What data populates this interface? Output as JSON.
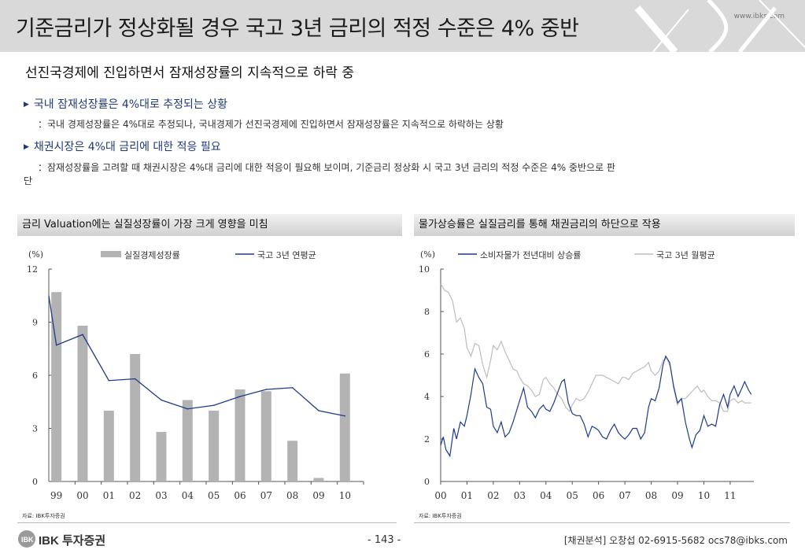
{
  "header": {
    "title": "기준금리가 정상화될 경우 국고 3년 금리의 적정 수준은 4% 중반",
    "site": "www.ibks.com"
  },
  "lead": "선진국경제에 진입하면서 잠재성장률의 지속적으로 하락 중",
  "bullets": [
    {
      "heading": "국내 잠재성장률은 4%대로 추정되는 상황",
      "detail_line1": "：국내 경제성장률은 4%대로 추정되나, 국내경제가 선진국경제에 진입하면서 잠재성장률은 지속적으로 하락하는 상황",
      "detail_line2": ""
    },
    {
      "heading": "채권시장은 4%대 금리에 대한 적응 필요",
      "detail_line1": "：잠재성장률을 고려할 때 채권시장은 4%대 금리에 대한 적응이 필요해 보이며, 기준금리 정상화 시 국고 3년 금리의 적정 수준은 4% 중반으로 판",
      "detail_line2": "단"
    }
  ],
  "charts": [
    {
      "header": "금리 Valuation에는 실질성장률이 가장 크게 영향을 미침",
      "source": "자료: IBK투자증권"
    },
    {
      "header": "물가상승률은 실질금리를 통해 채권금리의 하단으로 작용",
      "source": "자료: IBK투자증권"
    }
  ],
  "chart_data": [
    {
      "type": "bar",
      "unit_label": "(%)",
      "categories": [
        "99",
        "00",
        "01",
        "02",
        "03",
        "04",
        "05",
        "06",
        "07",
        "08",
        "09",
        "10"
      ],
      "ylim": [
        0,
        12
      ],
      "yticks": [
        "0",
        "3",
        "6",
        "9",
        "12"
      ],
      "series": [
        {
          "name": "실질경제성장률",
          "type": "bar",
          "color": "#b3b3b3",
          "values": [
            10.7,
            8.8,
            4.0,
            7.2,
            2.8,
            4.6,
            4.0,
            5.2,
            5.1,
            2.3,
            0.2,
            6.1
          ]
        },
        {
          "name": "국고 3년 연평균",
          "type": "line",
          "color": "#1f3a8c",
          "values": [
            7.7,
            8.3,
            5.7,
            5.8,
            4.6,
            4.1,
            4.3,
            4.8,
            5.2,
            5.3,
            4.0,
            3.7
          ]
        }
      ],
      "line_start_value": 10.5,
      "grid": false,
      "legend": "top"
    },
    {
      "type": "line",
      "unit_label": "(%)",
      "x_ticks": [
        "00",
        "01",
        "02",
        "03",
        "04",
        "05",
        "06",
        "07",
        "08",
        "09",
        "10",
        "11"
      ],
      "x_range": [
        2000.0,
        2011.9
      ],
      "ylim": [
        0,
        10
      ],
      "yticks": [
        "0",
        "2",
        "4",
        "6",
        "8",
        "10"
      ],
      "series": [
        {
          "name": "소비자물가 전년대비 상승률",
          "color": "#1f3a8c",
          "points": [
            [
              2000.0,
              1.7
            ],
            [
              2000.1,
              2.1
            ],
            [
              2000.2,
              1.5
            ],
            [
              2000.35,
              1.2
            ],
            [
              2000.5,
              2.5
            ],
            [
              2000.6,
              2.0
            ],
            [
              2000.75,
              2.8
            ],
            [
              2000.9,
              2.6
            ],
            [
              2001.0,
              3.1
            ],
            [
              2001.15,
              4.1
            ],
            [
              2001.3,
              5.3
            ],
            [
              2001.45,
              4.9
            ],
            [
              2001.6,
              4.6
            ],
            [
              2001.75,
              3.5
            ],
            [
              2001.9,
              3.4
            ],
            [
              2002.0,
              2.6
            ],
            [
              2002.15,
              2.3
            ],
            [
              2002.3,
              2.8
            ],
            [
              2002.45,
              2.1
            ],
            [
              2002.6,
              2.3
            ],
            [
              2002.75,
              2.8
            ],
            [
              2002.9,
              3.4
            ],
            [
              2003.0,
              3.8
            ],
            [
              2003.15,
              4.4
            ],
            [
              2003.3,
              3.5
            ],
            [
              2003.45,
              3.3
            ],
            [
              2003.6,
              3.0
            ],
            [
              2003.75,
              3.4
            ],
            [
              2003.9,
              3.6
            ],
            [
              2004.0,
              3.4
            ],
            [
              2004.15,
              3.3
            ],
            [
              2004.3,
              3.7
            ],
            [
              2004.45,
              4.2
            ],
            [
              2004.6,
              4.7
            ],
            [
              2004.7,
              4.8
            ],
            [
              2004.85,
              3.7
            ],
            [
              2005.0,
              3.2
            ],
            [
              2005.15,
              3.1
            ],
            [
              2005.3,
              3.1
            ],
            [
              2005.45,
              2.7
            ],
            [
              2005.6,
              2.1
            ],
            [
              2005.75,
              2.6
            ],
            [
              2005.9,
              2.5
            ],
            [
              2006.0,
              2.4
            ],
            [
              2006.15,
              2.1
            ],
            [
              2006.3,
              2.0
            ],
            [
              2006.45,
              2.4
            ],
            [
              2006.6,
              2.7
            ],
            [
              2006.75,
              2.3
            ],
            [
              2006.9,
              2.1
            ],
            [
              2007.0,
              2.0
            ],
            [
              2007.15,
              2.2
            ],
            [
              2007.3,
              2.5
            ],
            [
              2007.45,
              2.5
            ],
            [
              2007.6,
              2.0
            ],
            [
              2007.75,
              2.3
            ],
            [
              2007.9,
              3.5
            ],
            [
              2008.0,
              3.9
            ],
            [
              2008.15,
              3.8
            ],
            [
              2008.3,
              4.4
            ],
            [
              2008.45,
              5.5
            ],
            [
              2008.55,
              5.9
            ],
            [
              2008.7,
              5.6
            ],
            [
              2008.85,
              4.5
            ],
            [
              2009.0,
              3.7
            ],
            [
              2009.15,
              3.9
            ],
            [
              2009.3,
              2.8
            ],
            [
              2009.45,
              2.0
            ],
            [
              2009.55,
              1.6
            ],
            [
              2009.7,
              2.2
            ],
            [
              2009.85,
              2.4
            ],
            [
              2010.0,
              3.1
            ],
            [
              2010.15,
              2.6
            ],
            [
              2010.3,
              2.7
            ],
            [
              2010.45,
              2.6
            ],
            [
              2010.6,
              3.6
            ],
            [
              2010.75,
              4.1
            ],
            [
              2010.9,
              3.5
            ],
            [
              2011.0,
              4.1
            ],
            [
              2011.15,
              4.5
            ],
            [
              2011.3,
              4.0
            ],
            [
              2011.45,
              4.4
            ],
            [
              2011.55,
              4.7
            ],
            [
              2011.7,
              4.3
            ],
            [
              2011.8,
              4.1
            ]
          ]
        },
        {
          "name": "국고 3년 월평균",
          "color": "#bdbdbd",
          "points": [
            [
              2000.0,
              9.3
            ],
            [
              2000.15,
              9.0
            ],
            [
              2000.3,
              8.9
            ],
            [
              2000.45,
              8.5
            ],
            [
              2000.6,
              7.5
            ],
            [
              2000.75,
              7.7
            ],
            [
              2000.9,
              7.2
            ],
            [
              2001.0,
              6.3
            ],
            [
              2001.15,
              5.9
            ],
            [
              2001.3,
              6.5
            ],
            [
              2001.45,
              6.4
            ],
            [
              2001.6,
              5.5
            ],
            [
              2001.75,
              4.9
            ],
            [
              2001.9,
              5.7
            ],
            [
              2002.0,
              6.4
            ],
            [
              2002.15,
              6.2
            ],
            [
              2002.3,
              6.6
            ],
            [
              2002.45,
              6.1
            ],
            [
              2002.6,
              5.7
            ],
            [
              2002.75,
              5.3
            ],
            [
              2002.9,
              5.2
            ],
            [
              2003.0,
              4.9
            ],
            [
              2003.15,
              4.6
            ],
            [
              2003.3,
              4.5
            ],
            [
              2003.45,
              4.3
            ],
            [
              2003.6,
              4.0
            ],
            [
              2003.75,
              4.1
            ],
            [
              2003.9,
              4.8
            ],
            [
              2004.0,
              4.9
            ],
            [
              2004.15,
              4.6
            ],
            [
              2004.3,
              4.4
            ],
            [
              2004.45,
              4.1
            ],
            [
              2004.6,
              3.9
            ],
            [
              2004.75,
              3.5
            ],
            [
              2004.9,
              3.3
            ],
            [
              2005.0,
              3.6
            ],
            [
              2005.15,
              3.9
            ],
            [
              2005.3,
              3.8
            ],
            [
              2005.45,
              3.9
            ],
            [
              2005.6,
              4.2
            ],
            [
              2005.75,
              4.6
            ],
            [
              2005.9,
              5.0
            ],
            [
              2006.0,
              5.0
            ],
            [
              2006.15,
              5.0
            ],
            [
              2006.3,
              4.9
            ],
            [
              2006.45,
              4.8
            ],
            [
              2006.6,
              4.7
            ],
            [
              2006.75,
              4.6
            ],
            [
              2006.9,
              4.9
            ],
            [
              2007.0,
              4.9
            ],
            [
              2007.15,
              4.8
            ],
            [
              2007.3,
              5.1
            ],
            [
              2007.45,
              5.2
            ],
            [
              2007.6,
              5.3
            ],
            [
              2007.75,
              5.4
            ],
            [
              2007.9,
              5.6
            ],
            [
              2008.0,
              5.2
            ],
            [
              2008.15,
              5.0
            ],
            [
              2008.3,
              5.2
            ],
            [
              2008.45,
              5.7
            ],
            [
              2008.6,
              5.8
            ],
            [
              2008.75,
              5.3
            ],
            [
              2008.85,
              4.4
            ],
            [
              2009.0,
              3.6
            ],
            [
              2009.15,
              3.9
            ],
            [
              2009.3,
              3.9
            ],
            [
              2009.45,
              4.1
            ],
            [
              2009.6,
              4.3
            ],
            [
              2009.75,
              4.5
            ],
            [
              2009.9,
              4.2
            ],
            [
              2010.0,
              4.3
            ],
            [
              2010.15,
              4.0
            ],
            [
              2010.3,
              3.8
            ],
            [
              2010.45,
              3.8
            ],
            [
              2010.6,
              3.7
            ],
            [
              2010.75,
              3.3
            ],
            [
              2010.9,
              3.3
            ],
            [
              2011.0,
              3.8
            ],
            [
              2011.15,
              3.9
            ],
            [
              2011.3,
              3.7
            ],
            [
              2011.45,
              3.8
            ],
            [
              2011.55,
              3.7
            ],
            [
              2011.7,
              3.7
            ],
            [
              2011.8,
              3.7
            ]
          ]
        }
      ],
      "grid": false,
      "legend": "top"
    }
  ],
  "footer": {
    "logo_text": "IBK 투자증권",
    "page": "- 143 -",
    "contact": "[채권분석] 오창섭 02-6915-5682 ocs78@ibks.com"
  }
}
